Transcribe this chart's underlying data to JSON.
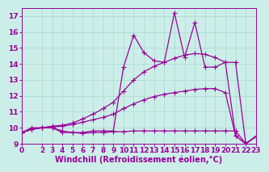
{
  "xlabel": "Windchill (Refroidissement éolien,°C)",
  "bg_color": "#cceee8",
  "grid_color": "#aad8d0",
  "line_color": "#990099",
  "xlim": [
    0,
    23
  ],
  "ylim": [
    9,
    17.5
  ],
  "xticks": [
    0,
    2,
    3,
    4,
    5,
    6,
    7,
    8,
    9,
    10,
    11,
    12,
    13,
    14,
    15,
    16,
    17,
    18,
    19,
    20,
    21,
    22,
    23
  ],
  "yticks": [
    9,
    10,
    11,
    12,
    13,
    14,
    15,
    16,
    17
  ],
  "line_spiky_x": [
    0,
    1,
    2,
    3,
    4,
    5,
    6,
    7,
    8,
    9,
    10,
    11,
    12,
    13,
    14,
    15,
    16,
    17,
    18,
    19,
    20,
    21,
    22,
    23
  ],
  "line_spiky_y": [
    9.7,
    10.0,
    10.0,
    10.0,
    9.7,
    9.7,
    9.7,
    9.8,
    9.8,
    9.8,
    13.8,
    15.8,
    14.7,
    14.2,
    14.1,
    17.2,
    14.4,
    16.6,
    13.8,
    13.8,
    14.1,
    14.1,
    9.0,
    9.45
  ],
  "line_upper_x": [
    0,
    1,
    2,
    3,
    4,
    5,
    6,
    7,
    8,
    9,
    10,
    11,
    12,
    13,
    14,
    15,
    16,
    17,
    18,
    19,
    20,
    21,
    22,
    23
  ],
  "line_upper_y": [
    9.7,
    9.9,
    10.0,
    10.1,
    10.15,
    10.3,
    10.55,
    10.85,
    11.2,
    11.6,
    12.3,
    13.0,
    13.5,
    13.85,
    14.1,
    14.35,
    14.55,
    14.65,
    14.6,
    14.4,
    14.1,
    9.5,
    9.0,
    9.45
  ],
  "line_mid_x": [
    0,
    1,
    2,
    3,
    4,
    5,
    6,
    7,
    8,
    9,
    10,
    11,
    12,
    13,
    14,
    15,
    16,
    17,
    18,
    19,
    20,
    21,
    22,
    23
  ],
  "line_mid_y": [
    9.7,
    9.9,
    10.0,
    10.05,
    10.1,
    10.2,
    10.35,
    10.5,
    10.65,
    10.85,
    11.2,
    11.5,
    11.75,
    11.95,
    12.1,
    12.2,
    12.3,
    12.4,
    12.45,
    12.45,
    12.2,
    9.5,
    9.0,
    9.45
  ],
  "line_flat_x": [
    0,
    1,
    2,
    3,
    4,
    5,
    6,
    7,
    8,
    9,
    10,
    11,
    12,
    13,
    14,
    15,
    16,
    17,
    18,
    19,
    20,
    21,
    22,
    23
  ],
  "line_flat_y": [
    9.7,
    9.9,
    10.0,
    10.0,
    9.8,
    9.7,
    9.65,
    9.7,
    9.7,
    9.75,
    9.75,
    9.8,
    9.8,
    9.8,
    9.8,
    9.8,
    9.8,
    9.8,
    9.8,
    9.8,
    9.8,
    9.8,
    9.0,
    9.45
  ],
  "marker": "+",
  "marker_size": 4,
  "font_size": 7,
  "tick_font_size": 6.5
}
